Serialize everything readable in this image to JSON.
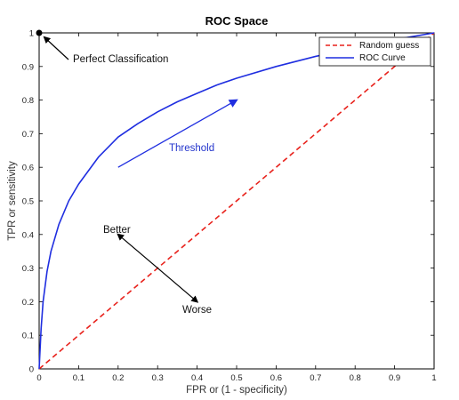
{
  "chart_data": {
    "type": "line",
    "title": "ROC Space",
    "xlabel": "FPR or (1 - specificity)",
    "ylabel": "TPR or sensitivity",
    "xlim": [
      0,
      1
    ],
    "ylim": [
      0,
      1
    ],
    "xticks": [
      "0",
      "0.1",
      "0.2",
      "0.3",
      "0.4",
      "0.5",
      "0.6",
      "0.7",
      "0.8",
      "0.9",
      "1"
    ],
    "yticks": [
      "0",
      "0.1",
      "0.2",
      "0.3",
      "0.4",
      "0.5",
      "0.6",
      "0.7",
      "0.8",
      "0.9",
      "1"
    ],
    "grid": false,
    "legend_position": "top-right",
    "series": [
      {
        "name": "Random guess",
        "color": "#e8221c",
        "style": "dashed",
        "x": [
          0,
          1
        ],
        "y": [
          0,
          1
        ]
      },
      {
        "name": "ROC Curve",
        "color": "#1f2ee0",
        "style": "solid",
        "x": [
          0,
          0.005,
          0.01,
          0.02,
          0.03,
          0.05,
          0.075,
          0.1,
          0.15,
          0.2,
          0.25,
          0.3,
          0.35,
          0.4,
          0.45,
          0.5,
          0.6,
          0.7,
          0.8,
          0.9,
          1.0
        ],
        "y": [
          0,
          0.12,
          0.2,
          0.29,
          0.35,
          0.43,
          0.5,
          0.55,
          0.63,
          0.69,
          0.73,
          0.765,
          0.795,
          0.82,
          0.845,
          0.865,
          0.9,
          0.93,
          0.955,
          0.98,
          1.0
        ]
      }
    ],
    "annotations": {
      "perfect_point": {
        "label": "Perfect Classification",
        "x": 0,
        "y": 1
      },
      "threshold": {
        "label": "Threshold",
        "color": "#2233cc",
        "from": [
          0.2,
          0.6
        ],
        "to": [
          0.5,
          0.8
        ]
      },
      "better": {
        "label": "Better",
        "from": [
          0.3,
          0.3
        ],
        "to": [
          0.2,
          0.4
        ]
      },
      "worse": {
        "label": "Worse",
        "from": [
          0.3,
          0.3
        ],
        "to": [
          0.4,
          0.2
        ]
      }
    }
  }
}
